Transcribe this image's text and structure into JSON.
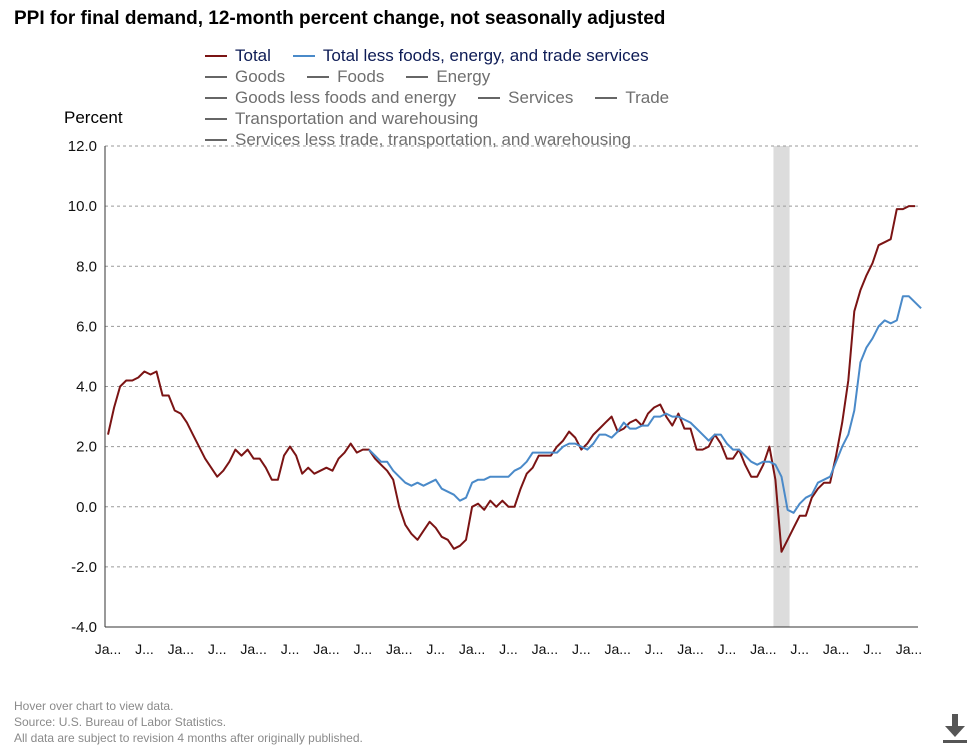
{
  "title": "PPI for final demand, 12-month percent change, not seasonally adjusted",
  "legend": [
    [
      {
        "label": "Total",
        "color": "#7b1414",
        "active": true
      },
      {
        "label": "Total less foods, energy, and trade services",
        "color": "#4a8ac9",
        "active": true
      }
    ],
    [
      {
        "label": "Goods",
        "color": "#666666",
        "active": false
      },
      {
        "label": "Foods",
        "color": "#666666",
        "active": false
      },
      {
        "label": "Energy",
        "color": "#666666",
        "active": false
      }
    ],
    [
      {
        "label": "Goods less foods and energy",
        "color": "#666666",
        "active": false
      },
      {
        "label": "Services",
        "color": "#666666",
        "active": false
      },
      {
        "label": "Trade",
        "color": "#666666",
        "active": false
      }
    ],
    [
      {
        "label": "Transportation and warehousing",
        "color": "#666666",
        "active": false
      }
    ],
    [
      {
        "label": "Services less trade, transportation, and warehousing",
        "color": "#666666",
        "active": false
      }
    ]
  ],
  "chart_data": {
    "type": "line",
    "title": "PPI for final demand, 12-month percent change, not seasonally adjusted",
    "ylabel": "Percent",
    "xlabel": "",
    "ylim": [
      -4.0,
      12.0
    ],
    "yticks": [
      -4.0,
      -2.0,
      0.0,
      2.0,
      4.0,
      6.0,
      8.0,
      10.0,
      12.0
    ],
    "ytick_labels": [
      "-4.0",
      "-2.0",
      "0.0",
      "2.0",
      "4.0",
      "6.0",
      "8.0",
      "10.0",
      "12.0"
    ],
    "x_count": 134,
    "xtick_indices": [
      0,
      6,
      12,
      18,
      24,
      30,
      36,
      42,
      48,
      54,
      60,
      66,
      72,
      78,
      84,
      90,
      96,
      102,
      108,
      114,
      120,
      126,
      132
    ],
    "xtick_labels": [
      "Ja...",
      "J...",
      "Ja...",
      "J...",
      "Ja...",
      "J...",
      "Ja...",
      "J...",
      "Ja...",
      "J...",
      "Ja...",
      "J...",
      "Ja...",
      "J...",
      "Ja...",
      "J...",
      "Ja...",
      "J...",
      "Ja...",
      "J...",
      "Ja...",
      "J...",
      "Ja..."
    ],
    "grid": true,
    "recession_band": [
      110,
      112
    ],
    "series": [
      {
        "name": "Total",
        "color": "#7b1414",
        "start_index": 0,
        "values": [
          2.4,
          3.3,
          4.0,
          4.2,
          4.2,
          4.3,
          4.5,
          4.4,
          4.5,
          3.7,
          3.7,
          3.2,
          3.1,
          2.8,
          2.4,
          2.0,
          1.6,
          1.3,
          1.0,
          1.2,
          1.5,
          1.9,
          1.7,
          1.9,
          1.6,
          1.6,
          1.3,
          0.9,
          0.9,
          1.7,
          2.0,
          1.7,
          1.1,
          1.3,
          1.1,
          1.2,
          1.3,
          1.2,
          1.6,
          1.8,
          2.1,
          1.8,
          1.9,
          1.9,
          1.6,
          1.4,
          1.2,
          0.9,
          0.0,
          -0.6,
          -0.9,
          -1.1,
          -0.8,
          -0.5,
          -0.7,
          -1.0,
          -1.1,
          -1.4,
          -1.3,
          -1.1,
          0.0,
          0.1,
          -0.1,
          0.2,
          0.0,
          0.2,
          0.0,
          0.0,
          0.6,
          1.1,
          1.3,
          1.7,
          1.7,
          1.7,
          2.0,
          2.2,
          2.5,
          2.3,
          1.9,
          2.1,
          2.4,
          2.6,
          2.8,
          3.0,
          2.5,
          2.6,
          2.8,
          2.9,
          2.7,
          3.1,
          3.3,
          3.4,
          3.0,
          2.7,
          3.1,
          2.6,
          2.6,
          1.9,
          1.9,
          2.0,
          2.4,
          2.1,
          1.6,
          1.6,
          1.9,
          1.4,
          1.0,
          1.0,
          1.4,
          2.0,
          0.9,
          -1.5,
          -1.1,
          -0.7,
          -0.3,
          -0.3,
          0.3,
          0.6,
          0.8,
          0.8,
          1.7,
          2.8,
          4.2,
          6.5,
          7.2,
          7.7,
          8.1,
          8.7,
          8.8,
          8.9,
          9.9,
          9.9,
          10.0,
          10.0
        ]
      },
      {
        "name": "Total less foods, energy, and trade services",
        "color": "#4a8ac9",
        "start_index": 43,
        "values": [
          1.9,
          1.7,
          1.5,
          1.5,
          1.2,
          1.0,
          0.8,
          0.7,
          0.8,
          0.7,
          0.8,
          0.9,
          0.6,
          0.5,
          0.4,
          0.2,
          0.3,
          0.8,
          0.9,
          0.9,
          1.0,
          1.0,
          1.0,
          1.0,
          1.2,
          1.3,
          1.5,
          1.8,
          1.8,
          1.8,
          1.8,
          1.8,
          2.0,
          2.1,
          2.1,
          2.0,
          1.9,
          2.1,
          2.4,
          2.4,
          2.3,
          2.5,
          2.8,
          2.6,
          2.6,
          2.7,
          2.7,
          3.0,
          3.0,
          3.1,
          3.0,
          3.0,
          2.9,
          2.8,
          2.6,
          2.4,
          2.2,
          2.4,
          2.4,
          2.1,
          1.9,
          1.9,
          1.7,
          1.5,
          1.4,
          1.5,
          1.5,
          1.4,
          1.0,
          -0.1,
          -0.2,
          0.1,
          0.3,
          0.4,
          0.8,
          0.9,
          1.0,
          1.5,
          2.0,
          2.4,
          3.2,
          4.8,
          5.3,
          5.6,
          6.0,
          6.2,
          6.1,
          6.2,
          7.0,
          7.0,
          6.8,
          6.6
        ]
      }
    ]
  },
  "footer": {
    "line1": "Hover over chart to view data.",
    "line2": "Source: U.S. Bureau of Labor Statistics.",
    "line3": "All data are subject to revision 4 months after originally published."
  },
  "download_icon": "download-icon"
}
